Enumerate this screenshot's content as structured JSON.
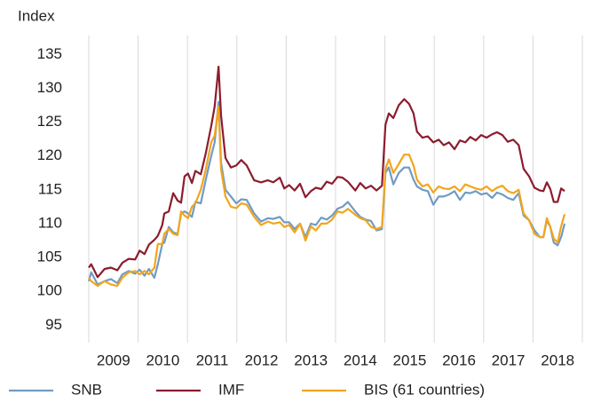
{
  "chart_data": {
    "type": "line",
    "y_label": "Index",
    "x": [
      2009.0,
      2009.05,
      2009.18,
      2009.32,
      2009.45,
      2009.58,
      2009.68,
      2009.81,
      2009.94,
      2010.03,
      2010.13,
      2010.22,
      2010.33,
      2010.4,
      2010.49,
      2010.53,
      2010.62,
      2010.71,
      2010.8,
      2010.87,
      2010.94,
      2011.01,
      2011.09,
      2011.16,
      2011.27,
      2011.37,
      2011.48,
      2011.55,
      2011.63,
      2011.68,
      2011.77,
      2011.88,
      2011.99,
      2012.09,
      2012.2,
      2012.35,
      2012.49,
      2012.63,
      2012.74,
      2012.87,
      2012.96,
      2013.06,
      2013.17,
      2013.28,
      2013.39,
      2013.5,
      2013.6,
      2013.71,
      2013.82,
      2013.93,
      2014.04,
      2014.14,
      2014.25,
      2014.4,
      2014.5,
      2014.61,
      2014.72,
      2014.83,
      2014.94,
      2015.01,
      2015.08,
      2015.17,
      2015.28,
      2015.39,
      2015.49,
      2015.58,
      2015.65,
      2015.76,
      2015.87,
      2015.98,
      2016.09,
      2016.19,
      2016.3,
      2016.41,
      2016.52,
      2016.63,
      2016.73,
      2016.84,
      2016.95,
      2017.06,
      2017.17,
      2017.27,
      2017.38,
      2017.49,
      2017.6,
      2017.71,
      2017.81,
      2017.92,
      2018.03,
      2018.14,
      2018.21,
      2018.28,
      2018.35,
      2018.42,
      2018.5,
      2018.57,
      2018.64
    ],
    "series": [
      {
        "name": "SNB",
        "color": "#6f9cc4",
        "values": [
          101.5,
          102.8,
          101,
          101.5,
          101.8,
          101.2,
          102.5,
          103,
          102.6,
          103.2,
          102.3,
          103.3,
          102,
          104,
          107,
          107.2,
          109.5,
          108.7,
          108.5,
          111.5,
          111.8,
          111.5,
          111,
          113.2,
          113,
          116.5,
          120,
          122,
          128,
          119,
          115,
          114,
          113,
          113.6,
          113.5,
          111.5,
          110.3,
          110.8,
          110.7,
          111,
          110.2,
          110.2,
          109.2,
          110,
          108,
          110,
          109.8,
          110.9,
          110.6,
          111.2,
          112.2,
          112.5,
          113.2,
          111.8,
          111,
          110.6,
          110.4,
          109,
          109.2,
          117.5,
          118.3,
          115.8,
          117.5,
          118.3,
          118.3,
          116.5,
          115.5,
          115,
          114.8,
          112.8,
          114,
          114,
          114.3,
          114.8,
          113.5,
          114.6,
          114.5,
          114.8,
          114.3,
          114.5,
          113.8,
          114.6,
          114.3,
          113.8,
          113.5,
          114.5,
          111.2,
          110.5,
          109,
          108,
          108,
          110.5,
          109.5,
          107.2,
          106.8,
          108,
          110
        ]
      },
      {
        "name": "IMF",
        "color": "#8c1c2e",
        "values": [
          103.5,
          104.0,
          102.1,
          103.3,
          103.5,
          103.1,
          104.2,
          104.8,
          104.7,
          106.0,
          105.5,
          106.9,
          107.6,
          108.2,
          109.8,
          111.5,
          111.8,
          114.5,
          113.4,
          113.1,
          117.0,
          117.4,
          116.0,
          117.8,
          117.3,
          120.4,
          124.4,
          127.3,
          133.2,
          126.0,
          119.7,
          118.3,
          118.6,
          119.4,
          118.6,
          116.4,
          116.1,
          116.4,
          116.1,
          116.8,
          115.2,
          115.7,
          114.9,
          115.9,
          113.9,
          114.8,
          115.3,
          115.1,
          116.2,
          115.9,
          116.9,
          116.8,
          116.2,
          114.9,
          116.0,
          115.2,
          115.6,
          114.9,
          115.6,
          124.6,
          126.3,
          125.6,
          127.5,
          128.4,
          127.7,
          126.3,
          123.6,
          122.7,
          122.9,
          122.0,
          122.4,
          121.6,
          122.0,
          121.0,
          122.3,
          122.0,
          122.8,
          122.3,
          123.1,
          122.7,
          123.2,
          123.5,
          123.1,
          122.1,
          122.4,
          121.6,
          118.1,
          117.0,
          115.3,
          114.9,
          114.8,
          116.1,
          115.1,
          113.2,
          113.2,
          115.2,
          114.8
        ]
      },
      {
        "name": "BIS (61 countries)",
        "color": "#f2a51e",
        "values": [
          102,
          101.5,
          100.8,
          101.5,
          101,
          100.8,
          102,
          102.8,
          103,
          102.5,
          103,
          102.5,
          103.5,
          107,
          107,
          108.5,
          109.2,
          108.5,
          108.3,
          111.8,
          111.2,
          110.8,
          112.5,
          113,
          115,
          118,
          122,
          123,
          127.3,
          118,
          114,
          112.5,
          112.3,
          113,
          112.8,
          111,
          109.8,
          110.3,
          110,
          110.2,
          109.5,
          109.8,
          108.7,
          110,
          107.5,
          109.6,
          109,
          110,
          110,
          110.6,
          111.8,
          111.6,
          112.2,
          111.3,
          110.8,
          110.5,
          109.5,
          109.2,
          109.5,
          118,
          119.5,
          117.5,
          118.8,
          120.2,
          120.2,
          118.6,
          116.5,
          115.5,
          115.8,
          114.6,
          115.5,
          115.2,
          115.1,
          115.5,
          114.8,
          115.8,
          115.5,
          115.2,
          115,
          115.5,
          114.8,
          115.3,
          115.6,
          114.8,
          114.5,
          115,
          111.5,
          110.5,
          108.5,
          108,
          108,
          110.8,
          109.5,
          107.8,
          107.2,
          109.6,
          111.4
        ]
      }
    ],
    "xlim": [
      2009,
      2019
    ],
    "xticks": [
      {
        "value": 2009,
        "label": "2009"
      },
      {
        "value": 2010,
        "label": "2010"
      },
      {
        "value": 2011,
        "label": "2011"
      },
      {
        "value": 2012,
        "label": "2012"
      },
      {
        "value": 2013,
        "label": "2013"
      },
      {
        "value": 2014,
        "label": "2014"
      },
      {
        "value": 2015,
        "label": "2015"
      },
      {
        "value": 2016,
        "label": "2016"
      },
      {
        "value": 2017,
        "label": "2017"
      },
      {
        "value": 2018,
        "label": "2018"
      }
    ],
    "ylim": [
      93.2,
      137.8
    ],
    "yticks": [
      95,
      100,
      105,
      110,
      115,
      120,
      125,
      130,
      135
    ],
    "grid": "x",
    "legend": "bottom"
  }
}
